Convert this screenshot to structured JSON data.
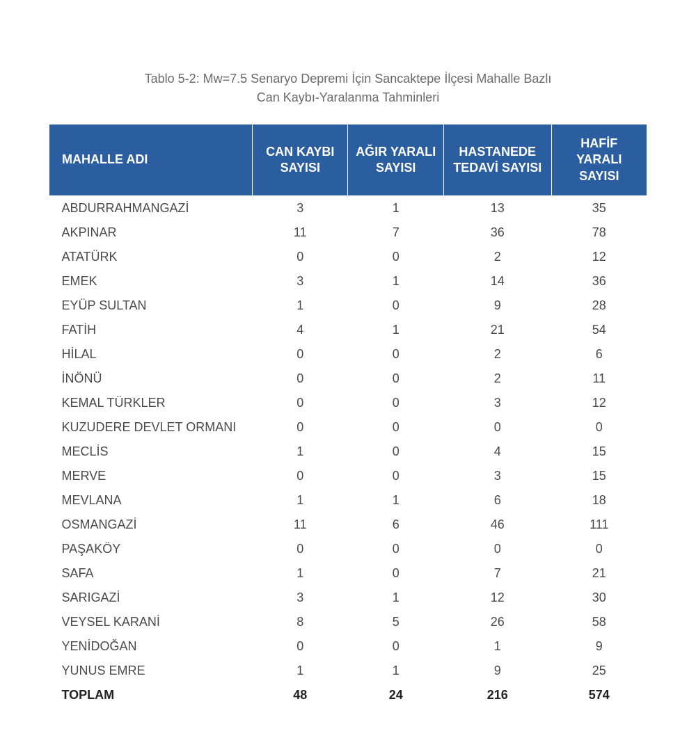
{
  "table": {
    "type": "table",
    "caption_line1": "Tablo 5-2: Mw=7.5 Senaryo Depremi İçin Sancaktepe İlçesi Mahalle Bazlı",
    "caption_line2": "Can Kaybı-Yaralanma Tahminleri",
    "header_bg": "#2a5ea0",
    "header_text_color": "#ffffff",
    "body_text_color": "#4a4a4a",
    "caption_text_color": "#6a6a6a",
    "font_size_body": 18,
    "font_size_header": 18,
    "columns": [
      {
        "label": "MAHALLE ADI",
        "align": "left"
      },
      {
        "label": "CAN KAYBI SAYISI",
        "align": "center"
      },
      {
        "label": "AĞIR YARALI SAYISI",
        "align": "center"
      },
      {
        "label": "HASTANEDE TEDAVİ SAYISI",
        "align": "center"
      },
      {
        "label": "HAFİF YARALI SAYISI",
        "align": "center"
      }
    ],
    "rows": [
      [
        "ABDURRAHMANGAZİ",
        "3",
        "1",
        "13",
        "35"
      ],
      [
        "AKPINAR",
        "11",
        "7",
        "36",
        "78"
      ],
      [
        "ATATÜRK",
        "0",
        "0",
        "2",
        "12"
      ],
      [
        "EMEK",
        "3",
        "1",
        "14",
        "36"
      ],
      [
        "EYÜP SULTAN",
        "1",
        "0",
        "9",
        "28"
      ],
      [
        "FATİH",
        "4",
        "1",
        "21",
        "54"
      ],
      [
        "HİLAL",
        "0",
        "0",
        "2",
        "6"
      ],
      [
        "İNÖNÜ",
        "0",
        "0",
        "2",
        "11"
      ],
      [
        "KEMAL TÜRKLER",
        "0",
        "0",
        "3",
        "12"
      ],
      [
        "KUZUDERE DEVLET ORMANI",
        "0",
        "0",
        "0",
        "0"
      ],
      [
        "MECLİS",
        "1",
        "0",
        "4",
        "15"
      ],
      [
        "MERVE",
        "0",
        "0",
        "3",
        "15"
      ],
      [
        "MEVLANA",
        "1",
        "1",
        "6",
        "18"
      ],
      [
        "OSMANGAZİ",
        "11",
        "6",
        "46",
        "111"
      ],
      [
        "PAŞAKÖY",
        "0",
        "0",
        "0",
        "0"
      ],
      [
        "SAFA",
        "1",
        "0",
        "7",
        "21"
      ],
      [
        "SARIGAZİ",
        "3",
        "1",
        "12",
        "30"
      ],
      [
        "VEYSEL KARANİ",
        "8",
        "5",
        "26",
        "58"
      ],
      [
        "YENİDOĞAN",
        "0",
        "0",
        "1",
        "9"
      ],
      [
        "YUNUS EMRE",
        "1",
        "1",
        "9",
        "25"
      ]
    ],
    "total_row": [
      "TOPLAM",
      "48",
      "24",
      "216",
      "574"
    ]
  }
}
